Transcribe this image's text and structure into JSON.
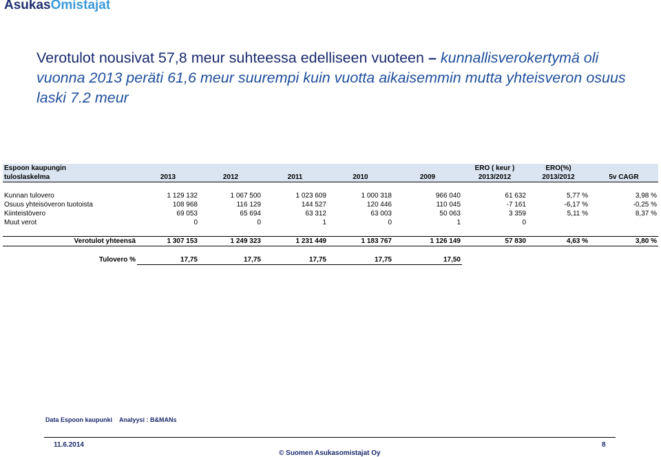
{
  "logo": {
    "part1": "Asukas",
    "part2": "Omistajat"
  },
  "headline": {
    "normal": "Verotulot nousivat 57,8  meur suhteessa edelliseen vuoteen  ",
    "dash": "–",
    "italic": " kunnallisverokertymä oli vuonna 2013 peräti 61,6 meur suurempi kuin vuotta aikaisemmin mutta yhteisveron osuus laski 7.2 meur"
  },
  "table": {
    "header_top": {
      "col1": "Espoon kaupungin",
      "ero_keur": "ERO ( keur )",
      "ero_pct": "ERO(%)"
    },
    "header_bottom": {
      "col1": "tuloslaskelma",
      "years": [
        "2013",
        "2012",
        "2011",
        "2010",
        "2009"
      ],
      "ero_keur": "2013/2012",
      "ero_pct": "2013/2012",
      "cagr": "5v CAGR"
    },
    "rows": [
      {
        "label": "Kunnan tulovero",
        "v": [
          "1 129 132",
          "1 067 500",
          "1 023 609",
          "1 000 318",
          "966 040",
          "61 632",
          "5,77 %",
          "3,98 %"
        ]
      },
      {
        "label": "Osuus yhteisöveron tuotoista",
        "v": [
          "108 968",
          "116 129",
          "144 527",
          "120 446",
          "110 045",
          "-7 161",
          "-6,17 %",
          "-0,25 %"
        ]
      },
      {
        "label": "Kiinteistövero",
        "v": [
          "69 053",
          "65 694",
          "63 312",
          "63 003",
          "50 063",
          "3 359",
          "5,11 %",
          "8,37 %"
        ]
      },
      {
        "label": "Muut verot",
        "v": [
          "0",
          "0",
          "1",
          "0",
          "1",
          "0",
          "",
          ""
        ]
      }
    ],
    "total": {
      "label": "Verotulot yhteensä",
      "v": [
        "1 307 153",
        "1 249 323",
        "1 231 449",
        "1 183 767",
        "1 126 149",
        "57 830",
        "4,63 %",
        "3,80 %"
      ]
    },
    "percent": {
      "label": "Tulovero %",
      "v": [
        "17,75",
        "17,75",
        "17,75",
        "17,75",
        "17,50"
      ]
    }
  },
  "footer": {
    "source1": "Data Espoon kaupunki",
    "source2": "Analyysi : B&MANs",
    "date": "11.6.2014",
    "copyright": "© Suomen Asukasomistajat Oy",
    "page": "8"
  }
}
